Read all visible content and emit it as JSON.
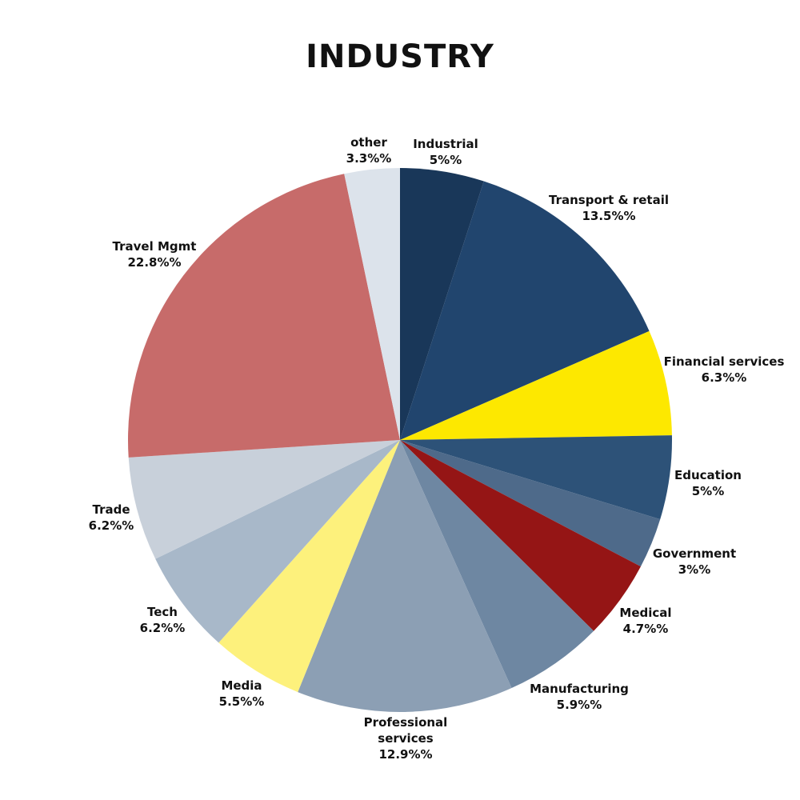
{
  "chart_data": {
    "type": "pie",
    "title": "INDUSTRY",
    "start_angle_deg": 0,
    "direction": "clockwise",
    "slices": [
      {
        "label": "Industrial",
        "value_text": "5%",
        "value": 5.0,
        "color": "#193759"
      },
      {
        "label": "Transport & retail",
        "value_text": "13.5%",
        "value": 13.5,
        "color": "#21456E"
      },
      {
        "label": "Financial services",
        "value_text": "6.3%",
        "value": 6.3,
        "color": "#FDE800"
      },
      {
        "label": "Education",
        "value_text": "5%",
        "value": 5.0,
        "color": "#2D5278"
      },
      {
        "label": "Government",
        "value_text": "3%",
        "value": 3.0,
        "color": "#4E6A8A"
      },
      {
        "label": "Medical",
        "value_text": "4.7%",
        "value": 4.7,
        "color": "#951515"
      },
      {
        "label": "Manufacturing",
        "value_text": "5.9%",
        "value": 5.9,
        "color": "#6E87A2"
      },
      {
        "label": "Professional services",
        "value_text": "12.9%",
        "value": 12.9,
        "color": "#8C9FB4"
      },
      {
        "label": "Media",
        "value_text": "5.5%",
        "value": 5.5,
        "color": "#FDF17C"
      },
      {
        "label": "Tech",
        "value_text": "6.2%",
        "value": 6.2,
        "color": "#A8B8C9"
      },
      {
        "label": "Trade",
        "value_text": "6.2%",
        "value": 6.2,
        "color": "#C8D0DA"
      },
      {
        "label": "Travel Mgmt",
        "value_text": "22.8%",
        "value": 22.8,
        "color": "#C76B6A"
      },
      {
        "label": "other",
        "value_text": "3.3%",
        "value": 3.3,
        "color": "#DCE3EB"
      }
    ]
  }
}
